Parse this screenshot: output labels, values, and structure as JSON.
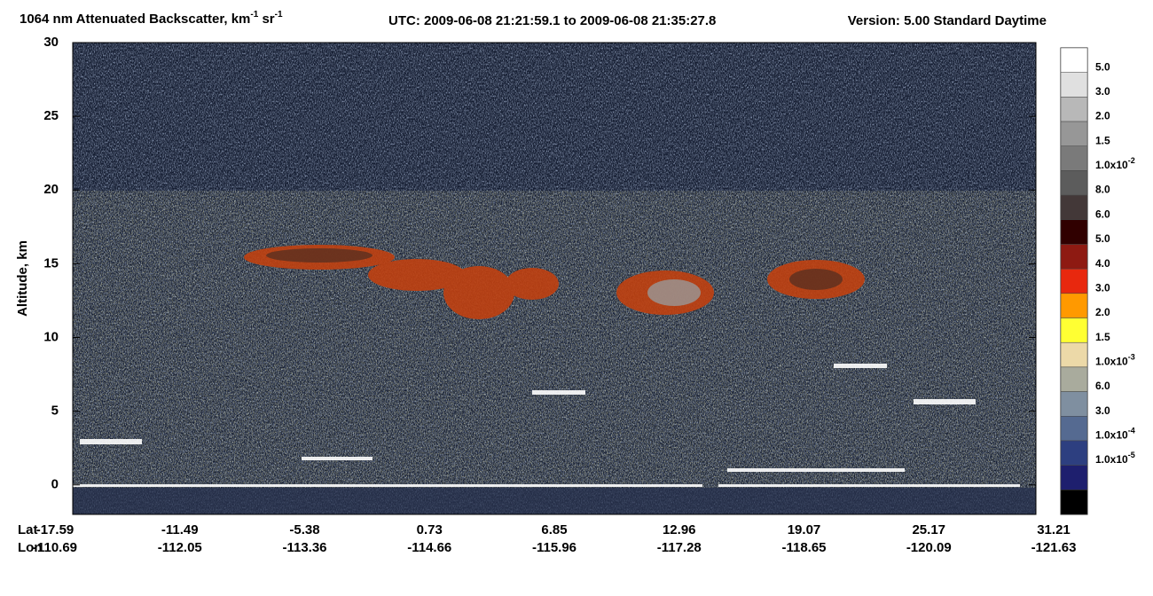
{
  "chart_data": {
    "type": "heatmap",
    "title": [
      "1064 nm Attenuated Backscatter, km",
      "-1",
      " sr",
      "-1"
    ],
    "subtitle": "UTC:  2009-06-08 21:21:59.1  to  2009-06-08 21:35:27.8",
    "version": "Version: 5.00  Standard  Daytime",
    "ylabel": "Altitude, km",
    "ylim": [
      -2,
      30
    ],
    "yticks": [
      0,
      5,
      10,
      15,
      20,
      25,
      30
    ],
    "x_row_labels": [
      "Lat",
      "Lon"
    ],
    "lat": [
      "-17.59",
      "-11.49",
      "-5.38",
      "0.73",
      "6.85",
      "12.96",
      "19.07",
      "25.17",
      "31.21"
    ],
    "lon": [
      "-110.69",
      "-112.05",
      "-113.36",
      "-114.66",
      "-115.96",
      "-117.28",
      "-118.65",
      "-120.09",
      "-121.63"
    ],
    "colorbar": {
      "colors": [
        "#ffffff",
        "#e0e0e0",
        "#b8b8b8",
        "#979797",
        "#7a7a7a",
        "#5c5c5c",
        "#433838",
        "#300000",
        "#8e1a12",
        "#e8280e",
        "#ff9900",
        "#ffff33",
        "#ecd9a8",
        "#a9ab9d",
        "#7f8fa0",
        "#556a91",
        "#2d3f80",
        "#1e1f6e",
        "#000000"
      ],
      "labels": [
        "5.0",
        "3.0",
        "2.0",
        "1.5",
        {
          "text": "1.0x10",
          "sup": "-2"
        },
        "8.0",
        "6.0",
        "5.0",
        "4.0",
        "3.0",
        "2.0",
        "1.5",
        {
          "text": "1.0x10",
          "sup": "-3"
        },
        "6.0",
        "3.0",
        {
          "text": "1.0x10",
          "sup": "-4"
        },
        {
          "text": "1.0x10",
          "sup": "-5"
        }
      ]
    }
  }
}
